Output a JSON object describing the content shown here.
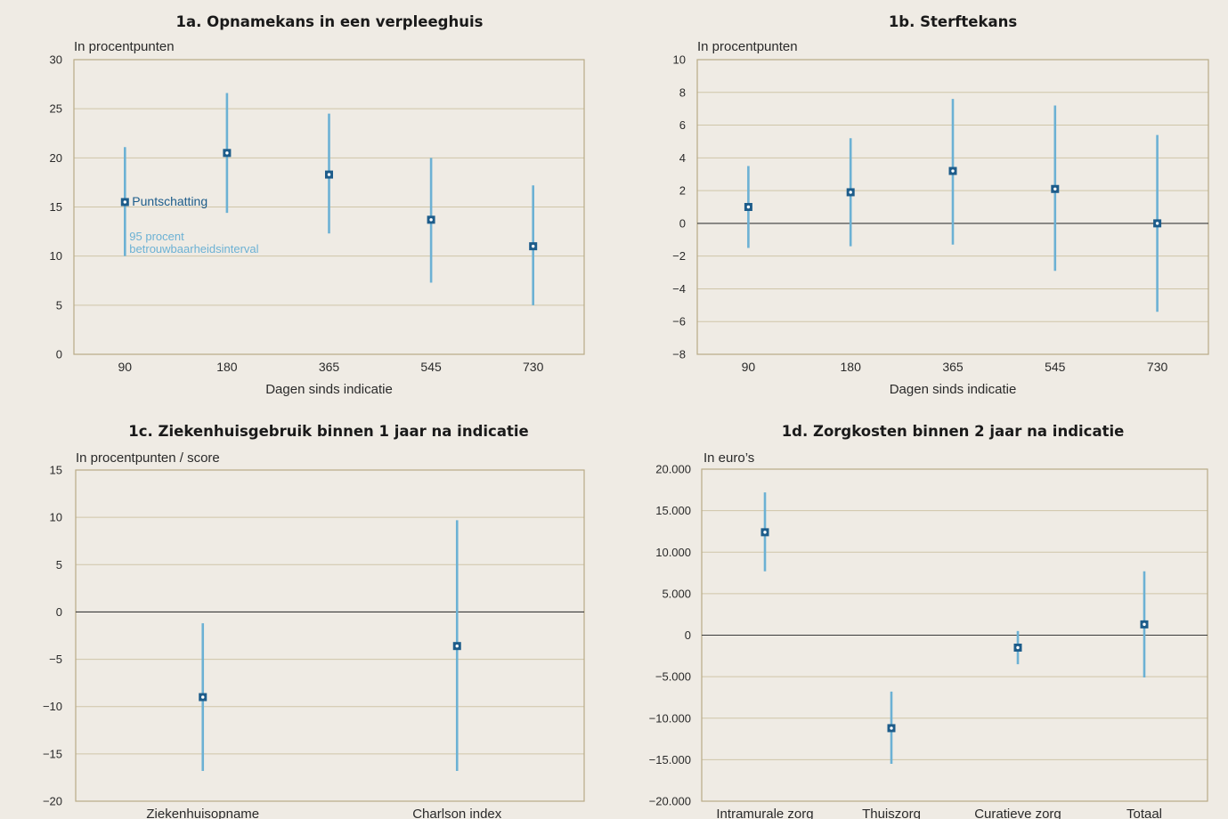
{
  "colors": {
    "background": "#efebe4",
    "grid": "#cfc5a8",
    "frame": "#b9ab86",
    "zero_line": "#3a3a3a",
    "interval": "#6cb1d4",
    "point_fill": "#1d5c8a",
    "point_marker": "#ffffff",
    "annotation_point": "#1d5c8a",
    "annotation_interval": "#6cb1d4"
  },
  "chart_data": [
    {
      "id": "1a",
      "type": "scatter",
      "title": "1a. Opnamekans in een verpleeghuis",
      "unit_label": "In procentpunten",
      "xlabel": "Dagen sinds indicatie",
      "ylim": [
        0,
        30
      ],
      "yticks": [
        0,
        5,
        10,
        15,
        20,
        25,
        30
      ],
      "ytick_labels": [
        "0",
        "5",
        "10",
        "15",
        "20",
        "25",
        "30"
      ],
      "categories": [
        "90",
        "180",
        "365",
        "545",
        "730"
      ],
      "points": [
        15.5,
        20.5,
        18.3,
        13.7,
        11.0
      ],
      "lower": [
        10.0,
        14.4,
        12.3,
        7.3,
        5.0
      ],
      "upper": [
        21.1,
        26.6,
        24.5,
        20.0,
        17.2
      ],
      "zero_line": false,
      "grid": true,
      "annotations": {
        "point": "Puntschatting",
        "interval_line1": "95 procent",
        "interval_line2": "betrouwbaarheidsinterval"
      }
    },
    {
      "id": "1b",
      "type": "scatter",
      "title": "1b. Sterftekans",
      "unit_label": "In procentpunten",
      "xlabel": "Dagen sinds indicatie",
      "ylim": [
        -8,
        10
      ],
      "yticks": [
        -8,
        -6,
        -4,
        -2,
        0,
        2,
        4,
        6,
        8,
        10
      ],
      "ytick_labels": [
        "−8",
        "−6",
        "−4",
        "−2",
        "0",
        "2",
        "4",
        "6",
        "8",
        "10"
      ],
      "categories": [
        "90",
        "180",
        "365",
        "545",
        "730"
      ],
      "points": [
        1.0,
        1.9,
        3.2,
        2.1,
        0.0
      ],
      "lower": [
        -1.5,
        -1.4,
        -1.3,
        -2.9,
        -5.4
      ],
      "upper": [
        3.5,
        5.2,
        7.6,
        7.2,
        5.4
      ],
      "zero_line": true,
      "grid": true
    },
    {
      "id": "1c",
      "type": "scatter",
      "title": "1c. Ziekenhuisgebruik binnen 1 jaar na indicatie",
      "unit_label": "In procentpunten / score",
      "xlabel": "",
      "ylim": [
        -20,
        15
      ],
      "yticks": [
        -20,
        -15,
        -10,
        -5,
        0,
        5,
        10,
        15
      ],
      "ytick_labels": [
        "−20",
        "−15",
        "−10",
        "−5",
        "0",
        "5",
        "10",
        "15"
      ],
      "categories": [
        "Ziekenhuisopname",
        "Charlson index"
      ],
      "points": [
        -9.0,
        -3.6
      ],
      "lower": [
        -16.8,
        -16.8
      ],
      "upper": [
        -1.2,
        9.7
      ],
      "zero_line": true,
      "grid": true
    },
    {
      "id": "1d",
      "type": "scatter",
      "title": "1d. Zorgkosten binnen 2 jaar na indicatie",
      "unit_label": "In euro’s",
      "xlabel": "",
      "ylim": [
        -20000,
        20000
      ],
      "yticks": [
        -20000,
        -15000,
        -10000,
        -5000,
        0,
        5000,
        10000,
        15000,
        20000
      ],
      "ytick_labels": [
        "−20.000",
        "−15.000",
        "−10.000",
        "−5.000",
        "0",
        "5.000",
        "10.000",
        "15.000",
        "20.000"
      ],
      "categories": [
        "Intramurale zorg",
        "Thuiszorg",
        "Curatieve zorg",
        "Totaal"
      ],
      "points": [
        12400,
        -11200,
        -1500,
        1300
      ],
      "lower": [
        7700,
        -15500,
        -3500,
        -5100
      ],
      "upper": [
        17200,
        -6800,
        500,
        7700
      ],
      "zero_line": true,
      "grid": true
    }
  ]
}
